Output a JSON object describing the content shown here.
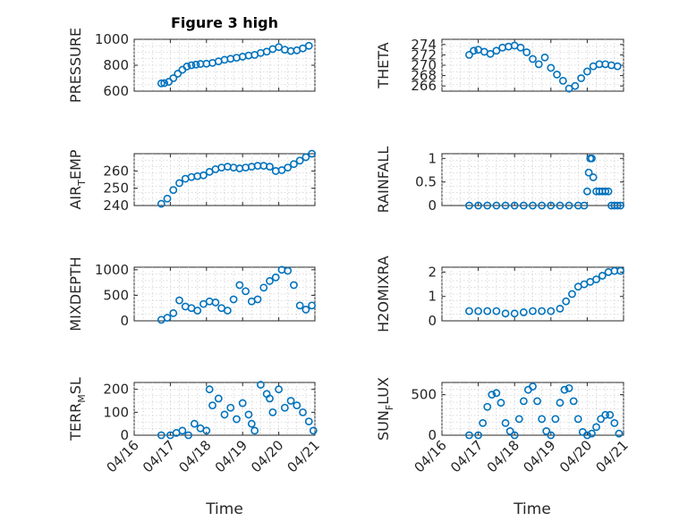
{
  "figure": {
    "title": "Figure 3 high",
    "xlabel": "Time",
    "date_ticks": [
      "04/16",
      "04/17",
      "04/18",
      "04/19",
      "04/20",
      "04/21"
    ],
    "marker_color": "#0072bd"
  },
  "chart_data": [
    {
      "type": "scatter",
      "title": "Figure 3 high",
      "ylabel": "PRESSURE",
      "xlim": [
        "04/16",
        "04/21"
      ],
      "ylim": [
        600,
        1000
      ],
      "yticks": [
        "600",
        "800",
        "1000"
      ],
      "xticklabels": [],
      "grid": true,
      "x": [
        "04/16 18:00",
        "04/16 20:00",
        "04/16 23:00",
        "04/17 02:00",
        "04/17 05:00",
        "04/17 08:00",
        "04/17 11:00",
        "04/17 14:00",
        "04/17 17:00",
        "04/17 20:00",
        "04/18 00:00",
        "04/18 04:00",
        "04/18 08:00",
        "04/18 12:00",
        "04/18 16:00",
        "04/18 20:00",
        "04/19 00:00",
        "04/19 04:00",
        "04/19 08:00",
        "04/19 12:00",
        "04/19 16:00",
        "04/19 20:00",
        "04/20 00:00",
        "04/20 04:00",
        "04/20 08:00",
        "04/20 12:00",
        "04/20 16:00",
        "04/20 20:00"
      ],
      "y": [
        660,
        662,
        672,
        700,
        735,
        765,
        790,
        800,
        805,
        810,
        812,
        818,
        830,
        842,
        850,
        858,
        866,
        875,
        880,
        895,
        905,
        925,
        940,
        920,
        910,
        915,
        930,
        950
      ]
    },
    {
      "type": "scatter",
      "ylabel": "THETA",
      "xlim": [
        "04/16",
        "04/21"
      ],
      "ylim": [
        265,
        275
      ],
      "yticks": [
        "266",
        "268",
        "270",
        "272",
        "274"
      ],
      "xticklabels": [],
      "grid": true,
      "x": [
        "04/16 18:00",
        "04/16 21:00",
        "04/17 00:00",
        "04/17 04:00",
        "04/17 08:00",
        "04/17 12:00",
        "04/17 16:00",
        "04/17 20:00",
        "04/18 00:00",
        "04/18 04:00",
        "04/18 08:00",
        "04/18 12:00",
        "04/18 16:00",
        "04/18 20:00",
        "04/19 00:00",
        "04/19 04:00",
        "04/19 08:00",
        "04/19 12:00",
        "04/19 16:00",
        "04/19 20:00",
        "04/20 00:00",
        "04/20 04:00",
        "04/20 08:00",
        "04/20 12:00",
        "04/20 16:00",
        "04/20 20:00"
      ],
      "y": [
        272,
        272.8,
        273,
        272.6,
        272.2,
        272.8,
        273.4,
        273.6,
        273.8,
        273.4,
        272.5,
        271.2,
        270.2,
        271.5,
        269.5,
        268.2,
        267,
        265.5,
        266,
        267.5,
        268.8,
        269.8,
        270.2,
        270.2,
        270,
        269.8
      ]
    },
    {
      "type": "scatter",
      "ylabel": "AIR_TEMP",
      "xlim": [
        "04/16",
        "04/21"
      ],
      "ylim": [
        240,
        270
      ],
      "yticks": [
        "240",
        "250",
        "260"
      ],
      "xticklabels": [],
      "grid": true,
      "x": [
        "04/16 18:00",
        "04/16 22:00",
        "04/17 02:00",
        "04/17 06:00",
        "04/17 10:00",
        "04/17 14:00",
        "04/17 18:00",
        "04/17 22:00",
        "04/18 02:00",
        "04/18 06:00",
        "04/18 10:00",
        "04/18 14:00",
        "04/18 18:00",
        "04/18 22:00",
        "04/19 02:00",
        "04/19 06:00",
        "04/19 10:00",
        "04/19 14:00",
        "04/19 18:00",
        "04/19 22:00",
        "04/20 02:00",
        "04/20 06:00",
        "04/20 10:00",
        "04/20 14:00",
        "04/20 18:00",
        "04/20 22:00"
      ],
      "y": [
        241,
        244,
        249,
        253,
        255.5,
        256.5,
        257,
        257.5,
        259.5,
        261,
        262,
        262.5,
        262,
        261.5,
        262,
        262.5,
        263,
        263,
        262.5,
        260,
        260.5,
        262,
        264,
        266,
        268,
        270
      ]
    },
    {
      "type": "scatter",
      "ylabel": "RAINFALL",
      "xlim": [
        "04/16",
        "04/21"
      ],
      "ylim": [
        0,
        1.1
      ],
      "yticks": [
        "0",
        "0.5",
        "1"
      ],
      "xticklabels": [],
      "grid": true,
      "x": [
        "04/16 18:00",
        "04/17 00:00",
        "04/17 06:00",
        "04/17 12:00",
        "04/17 18:00",
        "04/18 00:00",
        "04/18 06:00",
        "04/18 12:00",
        "04/18 18:00",
        "04/19 00:00",
        "04/19 06:00",
        "04/19 12:00",
        "04/19 18:00",
        "04/19 22:00",
        "04/20 00:00",
        "04/20 01:00",
        "04/20 02:00",
        "04/20 03:00",
        "04/20 04:00",
        "04/20 06:00",
        "04/20 08:00",
        "04/20 10:00",
        "04/20 12:00",
        "04/20 14:00",
        "04/20 16:00",
        "04/20 18:00",
        "04/20 20:00",
        "04/20 22:00"
      ],
      "y": [
        0,
        0,
        0,
        0,
        0,
        0,
        0,
        0,
        0,
        0,
        0,
        0,
        0,
        0,
        0.3,
        0.7,
        1,
        1,
        0.6,
        0.3,
        0.3,
        0.3,
        0.3,
        0.3,
        0,
        0,
        0,
        0
      ]
    },
    {
      "type": "scatter",
      "ylabel": "MIXDEPTH",
      "xlim": [
        "04/16",
        "04/21"
      ],
      "ylim": [
        0,
        1050
      ],
      "yticks": [
        "0",
        "500",
        "1000"
      ],
      "xticklabels": [],
      "grid": true,
      "x": [
        "04/16 18:00",
        "04/16 22:00",
        "04/17 02:00",
        "04/17 06:00",
        "04/17 10:00",
        "04/17 14:00",
        "04/17 18:00",
        "04/17 22:00",
        "04/18 02:00",
        "04/18 06:00",
        "04/18 10:00",
        "04/18 14:00",
        "04/18 18:00",
        "04/18 22:00",
        "04/19 02:00",
        "04/19 06:00",
        "04/19 10:00",
        "04/19 14:00",
        "04/19 18:00",
        "04/19 22:00",
        "04/20 02:00",
        "04/20 06:00",
        "04/20 10:00",
        "04/20 14:00",
        "04/20 18:00",
        "04/20 22:00"
      ],
      "y": [
        20,
        60,
        150,
        400,
        280,
        250,
        200,
        330,
        380,
        360,
        250,
        200,
        420,
        700,
        580,
        380,
        420,
        650,
        780,
        850,
        1000,
        980,
        700,
        300,
        220,
        300
      ]
    },
    {
      "type": "scatter",
      "ylabel": "H2OMIXRA",
      "xlim": [
        "04/16",
        "04/21"
      ],
      "ylim": [
        0,
        2.2
      ],
      "yticks": [
        "0",
        "1",
        "2"
      ],
      "xticklabels": [],
      "grid": true,
      "x": [
        "04/16 18:00",
        "04/17 00:00",
        "04/17 06:00",
        "04/17 12:00",
        "04/17 18:00",
        "04/18 00:00",
        "04/18 06:00",
        "04/18 12:00",
        "04/18 18:00",
        "04/19 00:00",
        "04/19 06:00",
        "04/19 10:00",
        "04/19 14:00",
        "04/19 18:00",
        "04/19 22:00",
        "04/20 02:00",
        "04/20 06:00",
        "04/20 10:00",
        "04/20 14:00",
        "04/20 18:00",
        "04/20 22:00"
      ],
      "y": [
        0.4,
        0.4,
        0.4,
        0.4,
        0.3,
        0.3,
        0.35,
        0.4,
        0.4,
        0.4,
        0.5,
        0.8,
        1.1,
        1.4,
        1.5,
        1.6,
        1.7,
        1.85,
        2,
        2.05,
        2.05
      ]
    },
    {
      "type": "scatter",
      "ylabel": "TERR_MSL",
      "xlim": [
        "04/16",
        "04/21"
      ],
      "ylim": [
        0,
        230
      ],
      "yticks": [
        "0",
        "100",
        "200"
      ],
      "xticklabels": [
        "04/16",
        "04/17",
        "04/18",
        "04/19",
        "04/20",
        "04/21"
      ],
      "grid": true,
      "x": [
        "04/16 18:00",
        "04/17 00:00",
        "04/17 04:00",
        "04/17 08:00",
        "04/17 12:00",
        "04/17 16:00",
        "04/17 20:00",
        "04/18 00:00",
        "04/18 02:00",
        "04/18 04:00",
        "04/18 08:00",
        "04/18 12:00",
        "04/18 16:00",
        "04/18 20:00",
        "04/19 00:00",
        "04/19 04:00",
        "04/19 06:00",
        "04/19 08:00",
        "04/19 12:00",
        "04/19 16:00",
        "04/19 18:00",
        "04/19 20:00",
        "04/20 00:00",
        "04/20 04:00",
        "04/20 08:00",
        "04/20 12:00",
        "04/20 16:00",
        "04/20 20:00",
        "04/20 23:00"
      ],
      "y": [
        0,
        0,
        10,
        20,
        0,
        50,
        30,
        20,
        200,
        130,
        160,
        90,
        120,
        70,
        140,
        90,
        50,
        20,
        220,
        180,
        160,
        100,
        200,
        120,
        150,
        130,
        100,
        60,
        20
      ]
    },
    {
      "type": "scatter",
      "ylabel": "SUN_FLUX",
      "xlim": [
        "04/16",
        "04/21"
      ],
      "ylim": [
        0,
        650
      ],
      "yticks": [
        "0",
        "500"
      ],
      "xticklabels": [
        "04/16",
        "04/17",
        "04/18",
        "04/19",
        "04/20",
        "04/21"
      ],
      "grid": true,
      "x": [
        "04/16 18:00",
        "04/17 00:00",
        "04/17 03:00",
        "04/17 06:00",
        "04/17 09:00",
        "04/17 12:00",
        "04/17 15:00",
        "04/17 18:00",
        "04/17 21:00",
        "04/18 00:00",
        "04/18 03:00",
        "04/18 06:00",
        "04/18 09:00",
        "04/18 12:00",
        "04/18 15:00",
        "04/18 18:00",
        "04/18 21:00",
        "04/19 00:00",
        "04/19 03:00",
        "04/19 06:00",
        "04/19 09:00",
        "04/19 12:00",
        "04/19 15:00",
        "04/19 18:00",
        "04/19 21:00",
        "04/20 00:00",
        "04/20 03:00",
        "04/20 06:00",
        "04/20 09:00",
        "04/20 12:00",
        "04/20 15:00",
        "04/20 18:00",
        "04/20 21:00"
      ],
      "y": [
        0,
        0,
        150,
        350,
        500,
        520,
        400,
        150,
        50,
        0,
        200,
        420,
        560,
        600,
        420,
        200,
        50,
        0,
        200,
        400,
        560,
        580,
        420,
        200,
        40,
        0,
        20,
        100,
        200,
        250,
        250,
        150,
        20
      ]
    }
  ]
}
